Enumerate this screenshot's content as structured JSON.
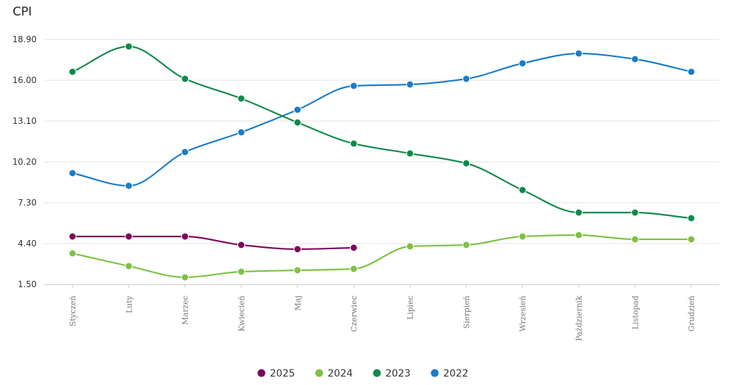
{
  "chart_data": {
    "type": "line",
    "title": "CPI",
    "xlabel": "",
    "ylabel": "",
    "categories": [
      "Styczeń",
      "Luty",
      "Marzec",
      "Kwiecień",
      "Maj",
      "Czerwiec",
      "Lipiec",
      "Sierpień",
      "Wrzesień",
      "Październik",
      "Listopad",
      "Grudzień"
    ],
    "yticks": [
      "1.50",
      "4.40",
      "7.30",
      "10.20",
      "13.10",
      "16.00",
      "18.90"
    ],
    "ylim": [
      1.5,
      18.9
    ],
    "grid": true,
    "legend_position": "bottom",
    "series": [
      {
        "name": "2025",
        "color": "#7b0a5c",
        "values": [
          4.9,
          4.9,
          4.9,
          4.3,
          4.0,
          4.1,
          null,
          null,
          null,
          null,
          null,
          null
        ]
      },
      {
        "name": "2024",
        "color": "#7dc242",
        "values": [
          3.7,
          2.8,
          2.0,
          2.4,
          2.5,
          2.6,
          4.2,
          4.3,
          4.9,
          5.0,
          4.7,
          4.7
        ]
      },
      {
        "name": "2023",
        "color": "#0f8a4a",
        "values": [
          16.6,
          18.4,
          16.1,
          14.7,
          13.0,
          11.5,
          10.8,
          10.1,
          8.2,
          6.6,
          6.6,
          6.2
        ]
      },
      {
        "name": "2022",
        "color": "#1a7cc9",
        "values": [
          9.4,
          8.5,
          10.9,
          12.3,
          13.9,
          15.6,
          15.7,
          16.1,
          17.2,
          17.9,
          17.5,
          16.6
        ]
      }
    ]
  }
}
